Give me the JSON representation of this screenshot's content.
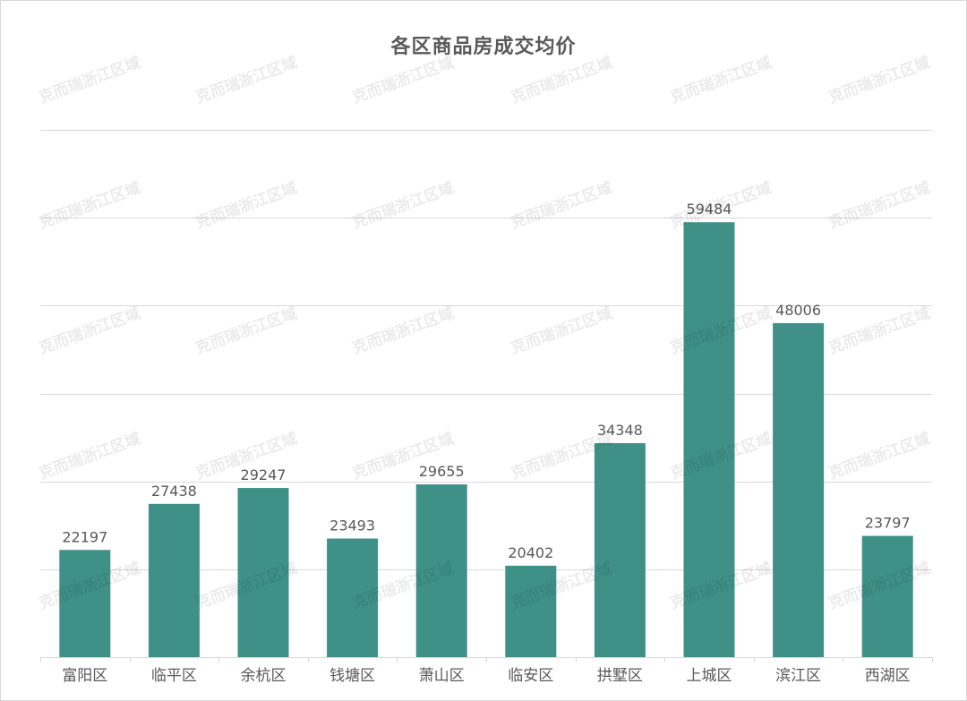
{
  "chart_data": {
    "type": "bar",
    "title": "各区商品房成交均价",
    "categories": [
      "富阳区",
      "临平区",
      "余杭区",
      "钱塘区",
      "萧山区",
      "临安区",
      "拱墅区",
      "上城区",
      "滨江区",
      "西湖区"
    ],
    "values": [
      22197,
      27438,
      29247,
      23493,
      29655,
      20402,
      34348,
      59484,
      48006,
      23797
    ],
    "ylim": [
      10000,
      70000
    ],
    "y_gridlines": [
      20000,
      30000,
      40000,
      50000,
      60000,
      70000
    ],
    "y_tick_labels_shown": false,
    "data_labels": true,
    "legend": "none",
    "bar_color": "#3f9188",
    "grid_color": "#d9d9d9",
    "label_color": "#595959"
  },
  "watermark": "克而瑞浙江区域"
}
